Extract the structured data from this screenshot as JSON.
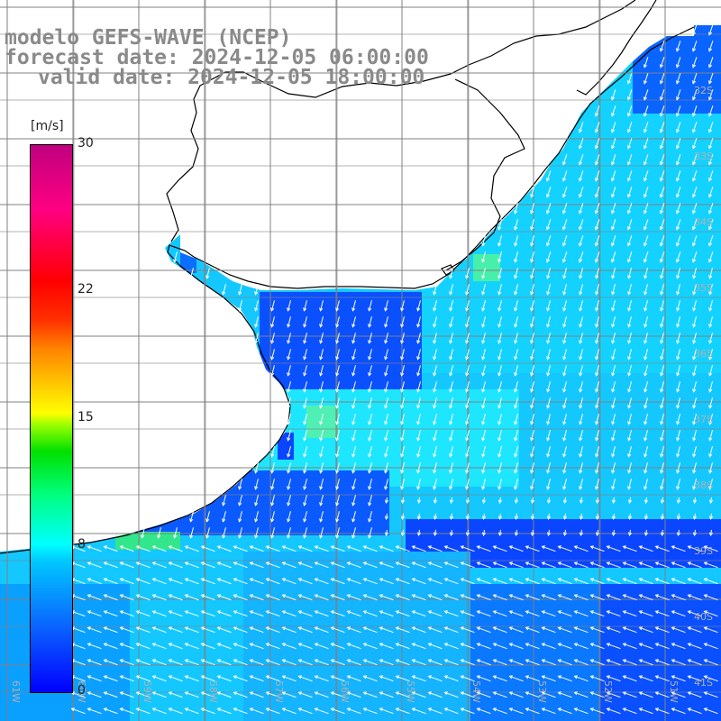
{
  "header": {
    "model": "modelo GEFS-WAVE (NCEP)",
    "forecast": "forecast date: 2024-12-05 06:00:00",
    "valid": "valid date: 2024-12-05 18:00:00"
  },
  "colorbar": {
    "unit": "[m/s]",
    "ticks": [
      {
        "label": "30",
        "value": 30
      },
      {
        "label": "22",
        "value": 22
      },
      {
        "label": "15",
        "value": 15
      },
      {
        "label": "8",
        "value": 8
      },
      {
        "label": "0",
        "value": 0
      }
    ],
    "colors": [
      "#0000ff",
      "#0a64ff",
      "#00c8ff",
      "#00ffff",
      "#00ff80",
      "#00e000",
      "#ffff00",
      "#ff8000",
      "#ff0000",
      "#c00080"
    ]
  },
  "map": {
    "lon_labels": [
      "61W",
      "60W",
      "59W",
      "58W",
      "57W",
      "56W",
      "55W",
      "54W",
      "53W",
      "52W",
      "51W"
    ],
    "lat_labels": [
      "32S",
      "33S",
      "34S",
      "35S",
      "36S",
      "37S",
      "38S",
      "39S",
      "40S",
      "41S"
    ],
    "land_color": "#ffffff",
    "arrow_color": "#ffffff",
    "grid_color": "#808080"
  }
}
